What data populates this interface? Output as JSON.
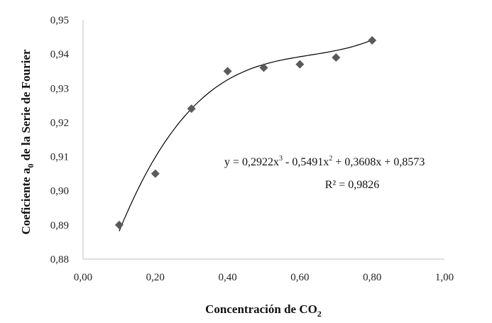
{
  "chart_data": {
    "type": "scatter",
    "title": "",
    "xlabel": {
      "main": "Concentración de CO",
      "sub": "2"
    },
    "ylabel": {
      "pre": "Coeficiente a",
      "sub": "0",
      "post": " de la Serie de Fourier"
    },
    "xlim": [
      0,
      1
    ],
    "ylim": [
      0.88,
      0.95
    ],
    "xticks": [
      "0,00",
      "0,20",
      "0,40",
      "0,60",
      "0,80",
      "1,00"
    ],
    "xtick_values": [
      0,
      0.2,
      0.4,
      0.6,
      0.8,
      1.0
    ],
    "yticks": [
      "0,88",
      "0,89",
      "0,90",
      "0,91",
      "0,92",
      "0,93",
      "0,94",
      "0,95"
    ],
    "ytick_values": [
      0.88,
      0.89,
      0.9,
      0.91,
      0.92,
      0.93,
      0.94,
      0.95
    ],
    "grid": false,
    "marker": "diamond",
    "marker_color": "#5a5a5a",
    "axis_color": "#bfbfbf",
    "x": [
      0.1,
      0.2,
      0.3,
      0.4,
      0.5,
      0.6,
      0.7,
      0.8
    ],
    "y": [
      0.89,
      0.905,
      0.924,
      0.935,
      0.936,
      0.937,
      0.939,
      0.944
    ],
    "trendline": {
      "type": "polynomial-3",
      "coefficients": [
        0.2922,
        -0.5491,
        0.3608,
        0.8573
      ],
      "range": [
        0.1,
        0.8
      ],
      "color": "#000000",
      "equation": {
        "prefix": "y = 0,2922x",
        "p1": "3",
        "mid1": " - 0,5491x",
        "p2": "2",
        "mid2": " + 0,3608x + 0,8573"
      },
      "r2": "R² = 0,9826"
    }
  }
}
